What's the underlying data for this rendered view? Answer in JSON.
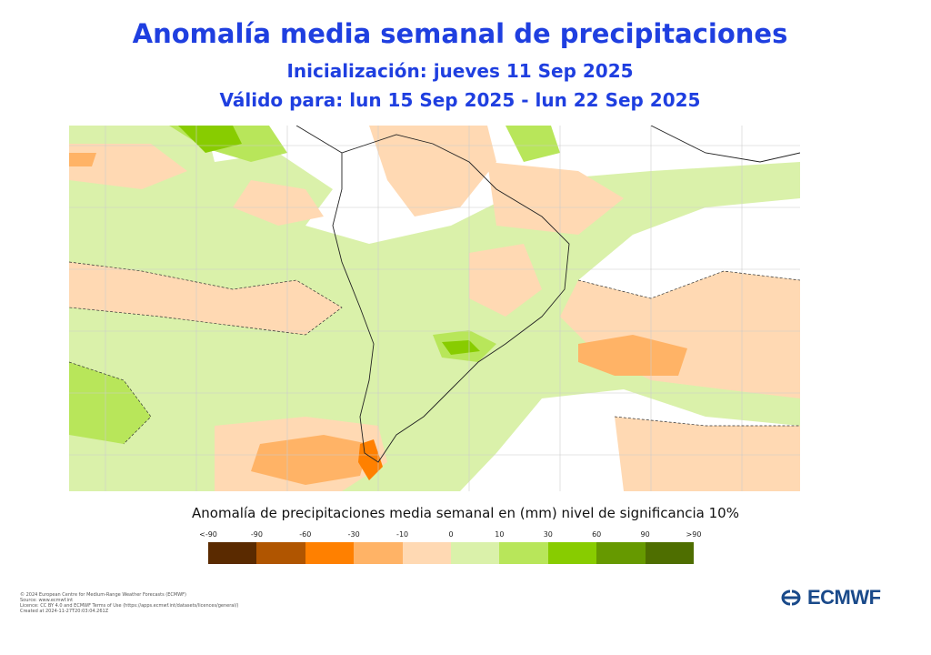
{
  "header": {
    "title": "Anomalía media semanal de precipitaciones",
    "init": "Inicialización: jueves 11 Sep 2025",
    "valid": "Válido para: lun 15 Sep 2025 - lun 22 Sep 2025"
  },
  "map": {
    "region": "South America",
    "significance_contours": "dashed"
  },
  "legend": {
    "title": "Anomalía de precipitaciones media semanal en (mm) nivel de significancia 10%",
    "ticks": [
      "<-90",
      "-90",
      "-60",
      "-30",
      "-10",
      "0",
      "10",
      "30",
      "60",
      "90",
      ">90"
    ],
    "colors": [
      "#5a2a00",
      "#b05500",
      "#ff8000",
      "#ffb366",
      "#ffd9b3",
      "#daf1aa",
      "#b8e65a",
      "#88cc00",
      "#669900",
      "#4e6e00"
    ]
  },
  "footer": {
    "lines": [
      "© 2024 European Centre for Medium-Range Weather Forecasts (ECMWF)",
      "Source: www.ecmwf.int",
      "Licence: CC BY 4.0 and ECMWF Terms of Use (https://apps.ecmwf.int/datasets/licences/general/)",
      "Created at 2024-11-27T20:03:04.261Z"
    ]
  },
  "logo": {
    "text": "ECMWF",
    "color": "#1a4a8a"
  }
}
